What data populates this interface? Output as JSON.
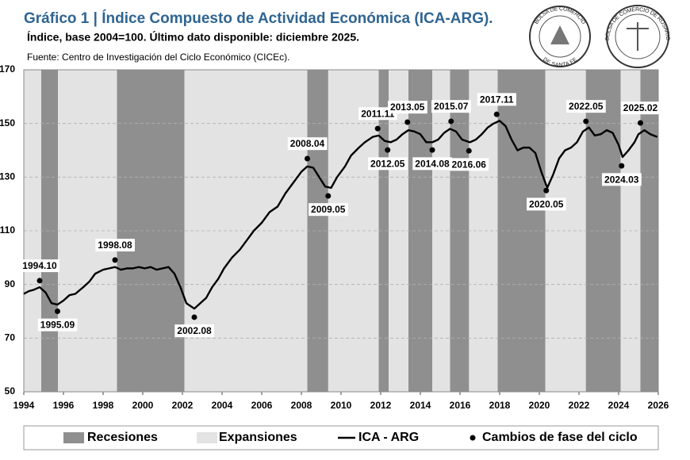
{
  "chart_data": {
    "type": "line",
    "title": "Gráfico 1 | Índice Compuesto de Actividad Económica (ICA-ARG).",
    "subtitle": "Índice, base 2004=100. Último dato disponible: diciembre 2025.",
    "source": "Fuente: Centro de Investigación del Ciclo Económico (CICEc).",
    "xlim": [
      1994,
      2026
    ],
    "xticks": [
      1994,
      1996,
      1998,
      2000,
      2002,
      2004,
      2006,
      2008,
      2010,
      2012,
      2014,
      2016,
      2018,
      2020,
      2022,
      2024,
      2026
    ],
    "ylim": [
      50,
      170
    ],
    "yticks": [
      50,
      70,
      90,
      110,
      130,
      150,
      170
    ],
    "grid": true,
    "x": [
      1994.0,
      1994.25,
      1994.5,
      1994.8,
      1995.1,
      1995.4,
      1995.7,
      1996.0,
      1996.3,
      1996.6,
      1997.0,
      1997.3,
      1997.6,
      1998.0,
      1998.3,
      1998.6,
      1998.9,
      1999.2,
      1999.5,
      1999.8,
      2000.1,
      2000.4,
      2000.7,
      2001.0,
      2001.3,
      2001.6,
      2001.9,
      2002.2,
      2002.6,
      2002.9,
      2003.2,
      2003.5,
      2003.8,
      2004.1,
      2004.5,
      2004.9,
      2005.2,
      2005.6,
      2006.0,
      2006.4,
      2006.8,
      2007.2,
      2007.6,
      2008.0,
      2008.3,
      2008.6,
      2008.9,
      2009.2,
      2009.5,
      2009.8,
      2010.2,
      2010.5,
      2010.9,
      2011.2,
      2011.6,
      2011.9,
      2012.2,
      2012.5,
      2012.8,
      2013.1,
      2013.4,
      2013.7,
      2014.0,
      2014.3,
      2014.6,
      2014.9,
      2015.2,
      2015.5,
      2015.8,
      2016.1,
      2016.5,
      2016.8,
      2017.1,
      2017.4,
      2017.7,
      2018.0,
      2018.3,
      2018.6,
      2018.9,
      2019.2,
      2019.5,
      2019.8,
      2020.1,
      2020.4,
      2020.7,
      2021.0,
      2021.3,
      2021.6,
      2021.9,
      2022.2,
      2022.5,
      2022.8,
      2023.1,
      2023.4,
      2023.7,
      2024.0,
      2024.2,
      2024.5,
      2024.8,
      2025.0,
      2025.3,
      2025.6,
      2025.95
    ],
    "series": [
      {
        "name": "ICA - ARG",
        "color": "#000000",
        "values": [
          86.5,
          87.5,
          88,
          89,
          87,
          83,
          82.5,
          84,
          86,
          86.5,
          89,
          91,
          94,
          95.5,
          96,
          96.5,
          95.5,
          96,
          96,
          96.5,
          96,
          96.5,
          95.5,
          96,
          96.5,
          94,
          89,
          83,
          81,
          83,
          85,
          89,
          92,
          96,
          100,
          103,
          106,
          110,
          113,
          117,
          119,
          124,
          128,
          132,
          134,
          133.5,
          130,
          126.5,
          126,
          130,
          134,
          138,
          141,
          143,
          145,
          145.5,
          143.5,
          143,
          144,
          146,
          147.5,
          147,
          146,
          143,
          143,
          144,
          146.5,
          148,
          147,
          144,
          143,
          144,
          146,
          148.5,
          150,
          151,
          149,
          144,
          140,
          141,
          141,
          139,
          132,
          126,
          131,
          137,
          140,
          141,
          143,
          147,
          148.5,
          145.5,
          146,
          147.5,
          146.5,
          142,
          137.5,
          140,
          143,
          146,
          147.5,
          146,
          145
        ]
      }
    ],
    "recessions": {
      "name": "Recesiones",
      "color": "#8f8f8f",
      "start": [
        1994.88,
        1998.7,
        2008.3,
        2011.9,
        2013.4,
        2015.5,
        2017.9,
        2022.35,
        2025.1
      ],
      "end": [
        1995.72,
        2002.1,
        2009.35,
        2012.4,
        2014.6,
        2016.45,
        2020.3,
        2024.1,
        2026
      ]
    },
    "expansions": {
      "name": "Expansiones",
      "color": "#e3e3e3"
    },
    "turning_points": {
      "name": "Cambios de fase del ciclo",
      "color": "#000000",
      "labels": [
        "1994.10",
        "1995.09",
        "1998.08",
        "2002.08",
        "2008.04",
        "2009.05",
        "2011.11",
        "2012.05",
        "2013.05",
        "2014.08",
        "2015.07",
        "2016.06",
        "2017.11",
        "2020.05",
        "2022.05",
        "2024.03",
        "2025.02"
      ],
      "x": [
        1994.8,
        1995.7,
        1998.6,
        2002.6,
        2008.3,
        2009.35,
        2011.85,
        2012.35,
        2013.35,
        2014.6,
        2015.55,
        2016.45,
        2017.85,
        2020.35,
        2022.35,
        2024.15,
        2025.1
      ],
      "values": [
        91.4,
        80,
        99.1,
        77.8,
        136.9,
        123,
        148.1,
        140.1,
        150.5,
        140.1,
        150.8,
        139.8,
        153.4,
        125,
        150.8,
        134.2,
        150.2
      ]
    }
  },
  "logos": [
    {
      "top": "BOLSA DE COMERCIO",
      "bottom": "DE SANTA FE"
    },
    {
      "top": "BOLSA DE COMERCIO DE ROSARIO"
    }
  ]
}
